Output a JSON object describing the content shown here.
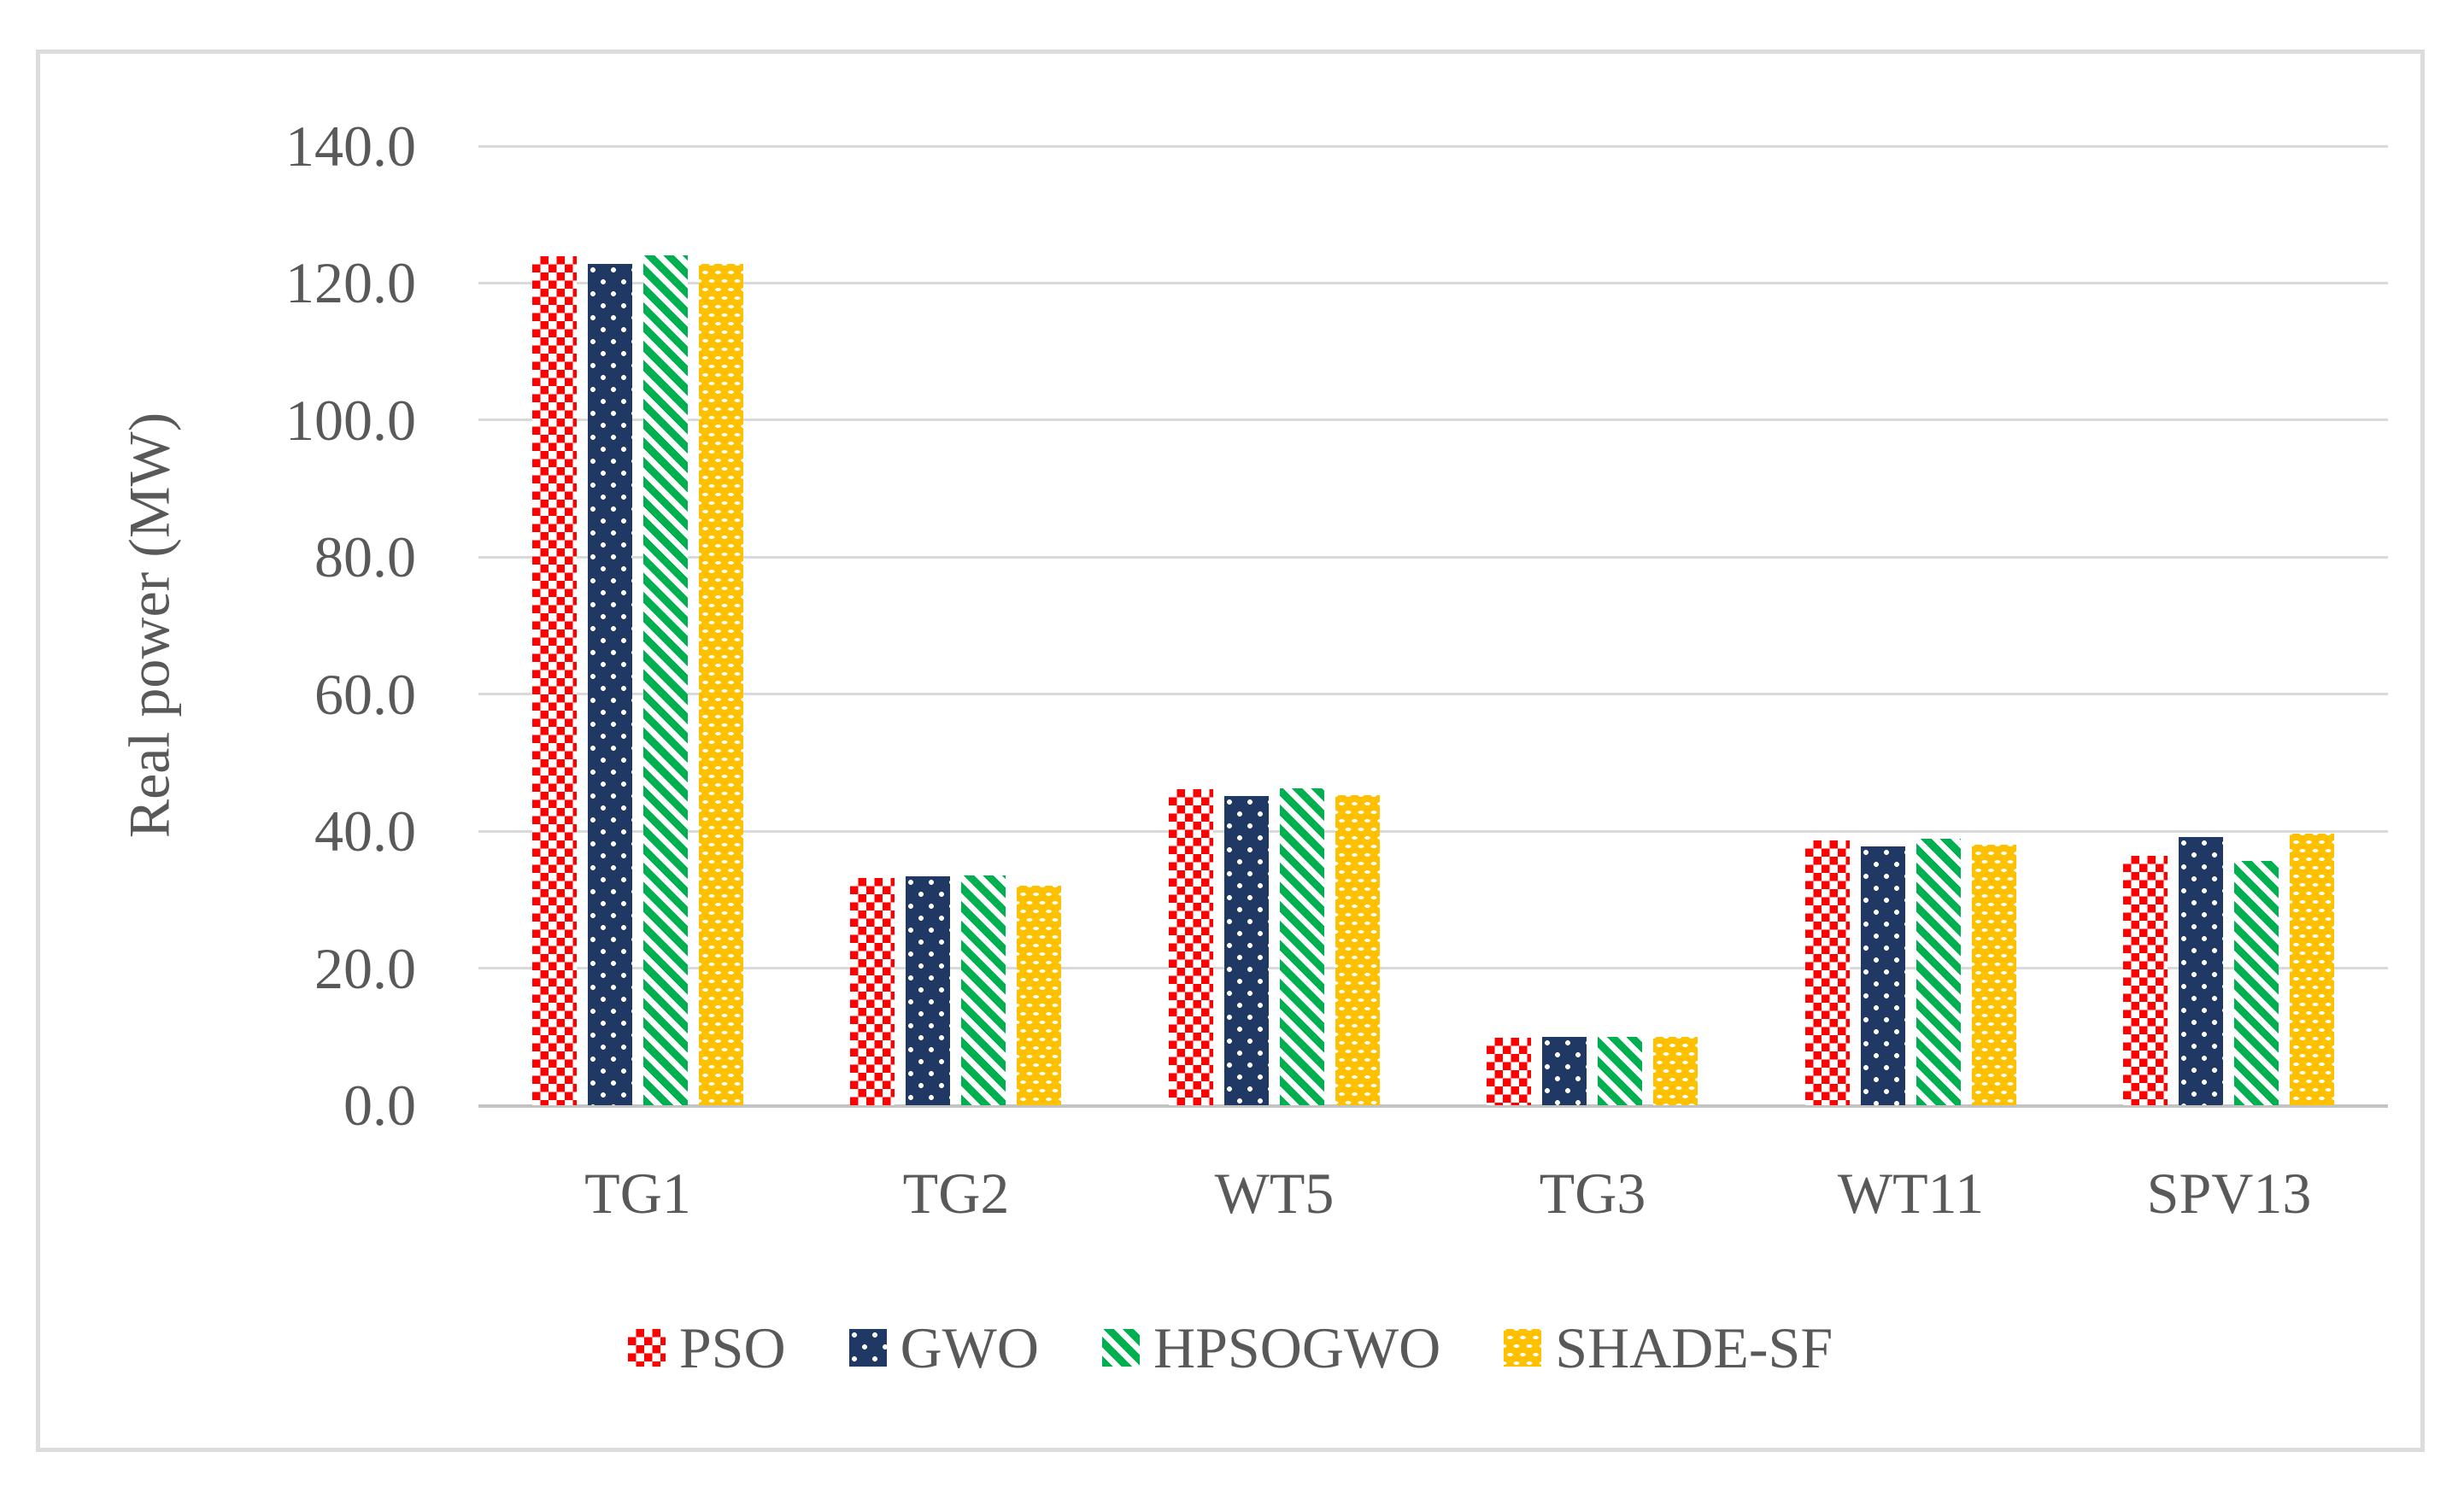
{
  "chart_data": {
    "type": "bar",
    "title": "",
    "xlabel": "",
    "ylabel": "Real power (MW)",
    "ylim": [
      0,
      140
    ],
    "ytick_step": 20,
    "yticks": [
      "0.0",
      "20.0",
      "40.0",
      "60.0",
      "80.0",
      "100.0",
      "120.0",
      "140.0"
    ],
    "categories": [
      "TG1",
      "TG2",
      "WT5",
      "TG3",
      "WT11",
      "SPV13"
    ],
    "series": [
      {
        "name": "PSO",
        "color": "#FE0000",
        "pattern": "checkerboard",
        "values": [
          123.9,
          33.2,
          46.1,
          9.9,
          38.6,
          36.4
        ]
      },
      {
        "name": "GWO",
        "color": "#1F3864",
        "pattern": "white-dots",
        "values": [
          122.8,
          33.4,
          45.1,
          10.0,
          37.8,
          39.2
        ]
      },
      {
        "name": "HPSOGWO",
        "color": "#00B050",
        "pattern": "diagonal-stripes",
        "values": [
          124.1,
          33.5,
          46.2,
          10.0,
          38.9,
          35.7
        ]
      },
      {
        "name": "SHADE-SF",
        "color": "#FFC000",
        "pattern": "weave-dashes",
        "values": [
          122.8,
          32.0,
          45.2,
          10.0,
          38.0,
          39.6
        ]
      }
    ],
    "legend_position": "bottom",
    "grid": true,
    "colors": {
      "axis_text": "#595959",
      "gridline": "#D9D9D9",
      "axis_line": "#C3C3C3",
      "frame_border": "#DCDCDC",
      "background": "#FFFFFF"
    }
  }
}
